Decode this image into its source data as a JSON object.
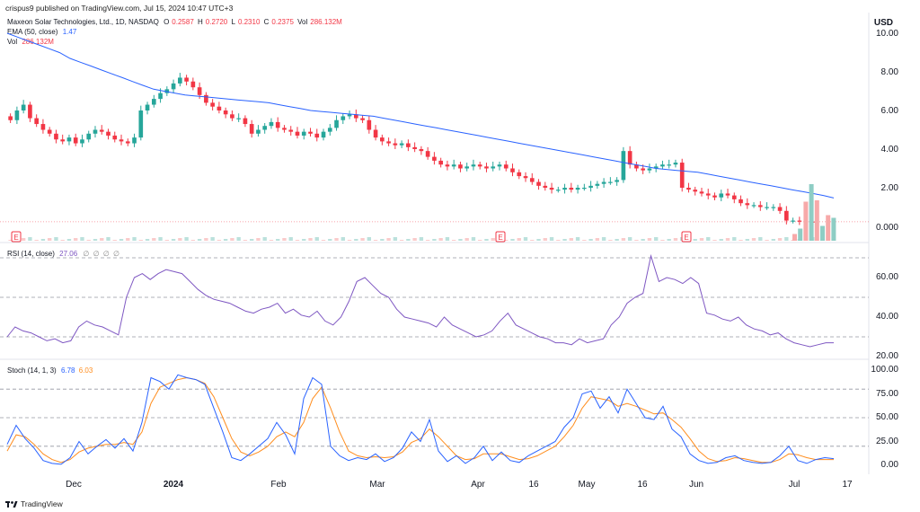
{
  "header": {
    "credit": "crispus9 published on TradingView.com, Jul 15, 2024 10:47 UTC+3",
    "symbol": "Maxeon Solar Technologies, Ltd., 1D, NASDAQ",
    "ohlc": {
      "o_label": "O",
      "o": "0.2587",
      "h_label": "H",
      "h": "0.2720",
      "l_label": "L",
      "l": "0.2310",
      "c_label": "C",
      "c": "0.2375",
      "vol_label": "Vol",
      "vol": "286.132M"
    },
    "ema_label": "EMA (50, close)",
    "ema_value": "1.47",
    "vol_label": "Vol",
    "vol_value": "286.132M",
    "rsi_label": "RSI (14, close)",
    "rsi_value": "27.06",
    "stoch_label": "Stoch (14, 1, 3)",
    "stoch_k": "6.78",
    "stoch_d": "6.03",
    "dots": "∅ ∅ ∅ ∅"
  },
  "currency": "USD",
  "earnings_marker": "E",
  "brand": "TradingView",
  "colors": {
    "up": "#26a69a",
    "down": "#f23645",
    "ema": "#2962ff",
    "rsi": "#7e57c2",
    "stoch_k": "#2962ff",
    "stoch_d": "#ff8d1e",
    "vol_up": "#8ecdc4",
    "vol_down": "#f7a9a9"
  },
  "chart_data": [
    {
      "type": "candlestick",
      "title": "Maxeon Solar Technologies, Ltd., 1D, NASDAQ",
      "x_ticks": [
        "Dec",
        "2024",
        "Feb",
        "Mar",
        "Apr",
        "16",
        "May",
        "16",
        "Jun",
        "Jul",
        "17"
      ],
      "y_ticks": [
        "10.00",
        "8.00",
        "6.00",
        "4.00",
        "2.00",
        "0.000"
      ],
      "ylim": [
        -0.3,
        10.4
      ],
      "series_close": [
        5.5,
        6.0,
        6.3,
        5.6,
        5.3,
        5.0,
        4.8,
        4.5,
        4.4,
        4.6,
        4.3,
        4.5,
        4.8,
        5.0,
        4.9,
        4.7,
        4.5,
        4.4,
        4.3,
        4.6,
        6.0,
        6.3,
        6.6,
        6.9,
        7.1,
        7.4,
        7.7,
        7.5,
        7.2,
        6.8,
        6.4,
        6.2,
        6.0,
        5.8,
        5.6,
        5.6,
        5.3,
        4.8,
        5.0,
        5.2,
        5.4,
        5.1,
        5.0,
        4.9,
        4.7,
        4.9,
        4.8,
        4.6,
        4.9,
        5.1,
        5.5,
        5.7,
        5.8,
        5.6,
        5.5,
        5.0,
        4.6,
        4.4,
        4.3,
        4.2,
        4.3,
        4.1,
        4.0,
        3.9,
        3.6,
        3.4,
        3.2,
        3.1,
        3.2,
        3.0,
        3.1,
        3.2,
        3.1,
        3.0,
        3.1,
        3.2,
        3.0,
        2.8,
        2.6,
        2.5,
        2.3,
        2.1,
        2.0,
        1.9,
        1.9,
        2.0,
        1.9,
        2.0,
        2.0,
        2.1,
        2.2,
        2.3,
        2.3,
        2.4,
        3.9,
        3.2,
        3.0,
        2.9,
        3.0,
        3.1,
        3.2,
        3.2,
        3.3,
        2.0,
        1.9,
        1.8,
        1.7,
        1.6,
        1.5,
        1.7,
        1.6,
        1.4,
        1.2,
        1.1,
        1.1,
        1.0,
        1.0,
        1.0,
        0.8,
        0.3,
        0.3,
        0.27,
        0.25,
        0.24
      ],
      "ema_50": [
        10.0,
        9.8,
        9.6,
        9.4,
        9.2,
        9.0,
        8.7,
        8.5,
        8.3,
        8.1,
        7.9,
        7.7,
        7.5,
        7.3,
        7.1,
        7.0,
        6.9,
        6.8,
        6.75,
        6.7,
        6.65,
        6.6,
        6.55,
        6.5,
        6.45,
        6.4,
        6.3,
        6.2,
        6.1,
        6.0,
        5.95,
        5.9,
        5.85,
        5.8,
        5.75,
        5.7,
        5.6,
        5.5,
        5.4,
        5.3,
        5.2,
        5.1,
        5.0,
        4.9,
        4.8,
        4.7,
        4.6,
        4.5,
        4.4,
        4.3,
        4.2,
        4.1,
        4.0,
        3.9,
        3.8,
        3.7,
        3.6,
        3.5,
        3.4,
        3.3,
        3.2,
        3.1,
        3.0,
        2.95,
        2.9,
        2.85,
        2.8,
        2.7,
        2.6,
        2.5,
        2.4,
        2.3,
        2.2,
        2.1,
        2.0,
        1.9,
        1.8,
        1.7,
        1.6,
        1.47
      ],
      "volume_spikes_last": [
        0.25,
        0.45,
        1.45,
        2.1,
        1.5,
        0.55,
        0.95,
        0.85
      ]
    },
    {
      "type": "line",
      "name": "RSI (14, close)",
      "y_ticks": [
        "60.00",
        "40.00",
        "20.00"
      ],
      "ylim": [
        18,
        74
      ],
      "bands": [
        70,
        50,
        30
      ],
      "values": [
        30,
        35,
        33,
        32,
        30,
        28,
        29,
        27,
        28,
        35,
        38,
        36,
        35,
        33,
        31,
        50,
        60,
        62,
        59,
        62,
        64,
        63,
        62,
        58,
        54,
        51,
        49,
        48,
        47,
        45,
        43,
        42,
        44,
        45,
        47,
        42,
        44,
        41,
        40,
        43,
        38,
        36,
        40,
        48,
        58,
        60,
        56,
        52,
        50,
        44,
        40,
        39,
        38,
        37,
        35,
        40,
        36,
        34,
        32,
        30,
        31,
        33,
        38,
        42,
        36,
        34,
        32,
        30,
        29,
        27,
        27,
        26,
        29,
        27,
        28,
        29,
        36,
        40,
        47,
        50,
        52,
        71,
        58,
        60,
        59,
        57,
        60,
        57,
        42,
        41,
        39,
        38,
        40,
        36,
        34,
        33,
        31,
        32,
        29,
        27,
        26,
        25,
        26,
        27,
        27
      ],
      "last": 27.06
    },
    {
      "type": "line",
      "name": "Stoch (14, 1, 3)",
      "y_ticks": [
        "100.00",
        "75.00",
        "50.00",
        "25.00",
        "0.00"
      ],
      "ylim": [
        -8,
        108
      ],
      "bands": [
        80,
        50,
        20
      ],
      "k": [
        22,
        42,
        28,
        18,
        5,
        2,
        1,
        8,
        25,
        12,
        20,
        27,
        18,
        28,
        15,
        45,
        92,
        88,
        80,
        95,
        92,
        90,
        85,
        60,
        35,
        8,
        5,
        12,
        20,
        28,
        45,
        32,
        12,
        70,
        92,
        85,
        20,
        10,
        5,
        8,
        6,
        12,
        4,
        8,
        18,
        35,
        25,
        48,
        15,
        4,
        10,
        2,
        8,
        20,
        5,
        14,
        5,
        3,
        10,
        15,
        20,
        25,
        40,
        50,
        75,
        78,
        60,
        72,
        55,
        80,
        65,
        50,
        48,
        62,
        38,
        30,
        12,
        5,
        2,
        3,
        8,
        10,
        5,
        3,
        2,
        3,
        10,
        20,
        5,
        2,
        6,
        8,
        7
      ],
      "d": [
        15,
        32,
        30,
        22,
        12,
        6,
        3,
        6,
        14,
        18,
        20,
        22,
        22,
        24,
        22,
        35,
        65,
        82,
        86,
        90,
        92,
        90,
        86,
        72,
        50,
        28,
        14,
        10,
        14,
        20,
        30,
        35,
        30,
        45,
        70,
        82,
        60,
        35,
        15,
        10,
        8,
        9,
        8,
        9,
        14,
        24,
        28,
        38,
        30,
        20,
        10,
        6,
        7,
        12,
        12,
        12,
        9,
        6,
        7,
        10,
        15,
        20,
        30,
        42,
        60,
        72,
        70,
        68,
        62,
        65,
        62,
        58,
        54,
        55,
        48,
        40,
        28,
        15,
        7,
        4,
        5,
        8,
        7,
        5,
        3,
        3,
        6,
        12,
        11,
        8,
        6,
        6,
        6
      ],
      "last_k": 6.78,
      "last_d": 6.03
    }
  ]
}
